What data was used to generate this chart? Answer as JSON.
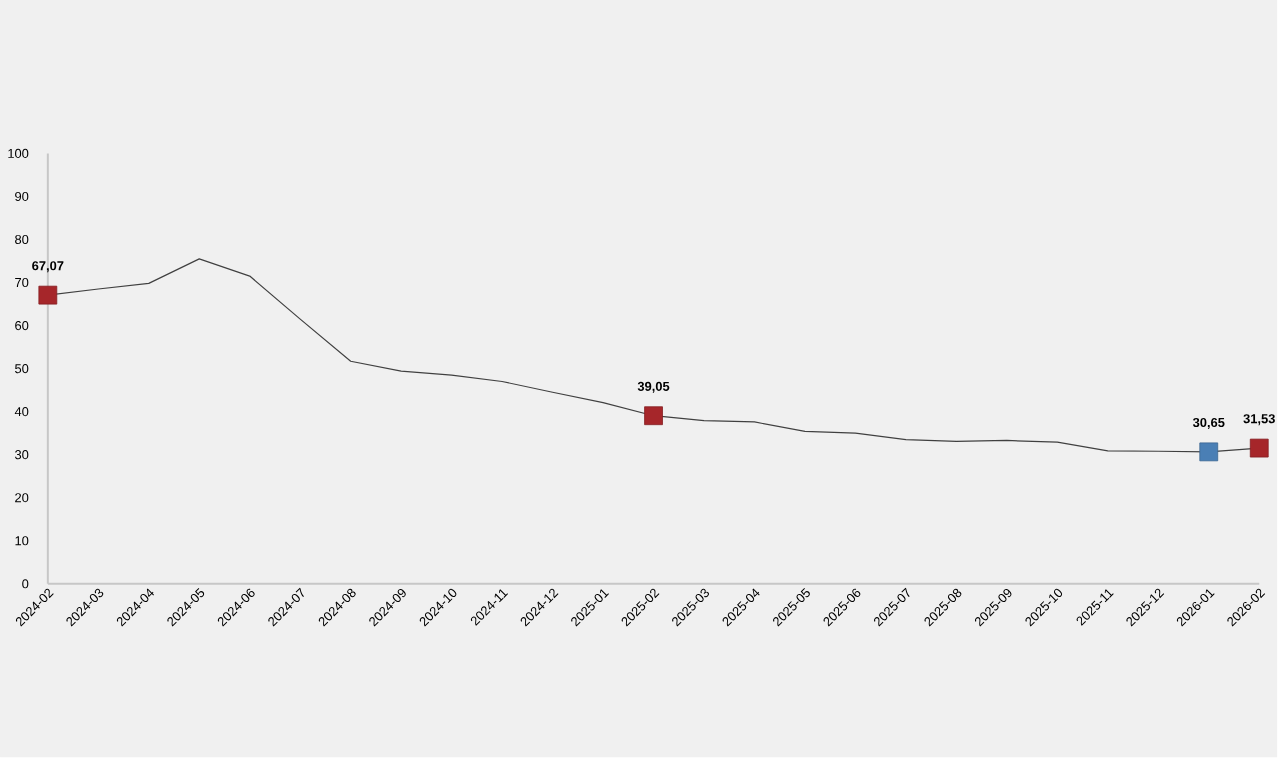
{
  "chart_data": {
    "type": "line",
    "categories": [
      "2024-02",
      "2024-03",
      "2024-04",
      "2024-05",
      "2024-06",
      "2024-07",
      "2024-08",
      "2024-09",
      "2024-10",
      "2024-11",
      "2024-12",
      "2025-01",
      "2025-02",
      "2025-03",
      "2025-04",
      "2025-05",
      "2025-06",
      "2025-07",
      "2025-08",
      "2025-09",
      "2025-10",
      "2025-11",
      "2025-12",
      "2026-01",
      "2026-02"
    ],
    "series": [
      {
        "color": "#404040",
        "marker": "none",
        "line_style": "solid",
        "values": [
          67.07,
          68.5,
          69.8,
          75.5,
          71.5,
          61.5,
          51.7,
          49.4,
          48.5,
          47.0,
          44.5,
          42.1,
          39.05,
          37.9,
          37.6,
          35.4,
          35.0,
          33.5,
          33.1,
          33.3,
          32.9,
          30.9,
          30.8,
          30.65,
          31.53
        ]
      },
      {
        "type": "scatter",
        "marker": "square",
        "values": [
          67.07,
          null,
          null,
          null,
          null,
          null,
          null,
          null,
          null,
          null,
          null,
          null,
          39.05,
          null,
          null,
          null,
          null,
          null,
          null,
          null,
          null,
          null,
          null,
          30.65,
          31.53
        ],
        "colors": [
          "#a6262a",
          null,
          null,
          null,
          null,
          null,
          null,
          null,
          null,
          null,
          null,
          null,
          "#a6262a",
          null,
          null,
          null,
          null,
          null,
          null,
          null,
          null,
          null,
          null,
          "#4a7fb5",
          "#a6262a"
        ],
        "value_labels": [
          "67,07",
          null,
          null,
          null,
          null,
          null,
          null,
          null,
          null,
          null,
          null,
          null,
          "39,05",
          null,
          null,
          null,
          null,
          null,
          null,
          null,
          null,
          null,
          null,
          "30,65",
          "31,53"
        ]
      }
    ],
    "grid": false,
    "ylim": [
      0,
      100
    ],
    "yticks": [
      0,
      10,
      20,
      30,
      40,
      50,
      60,
      70,
      80,
      90,
      100
    ]
  }
}
